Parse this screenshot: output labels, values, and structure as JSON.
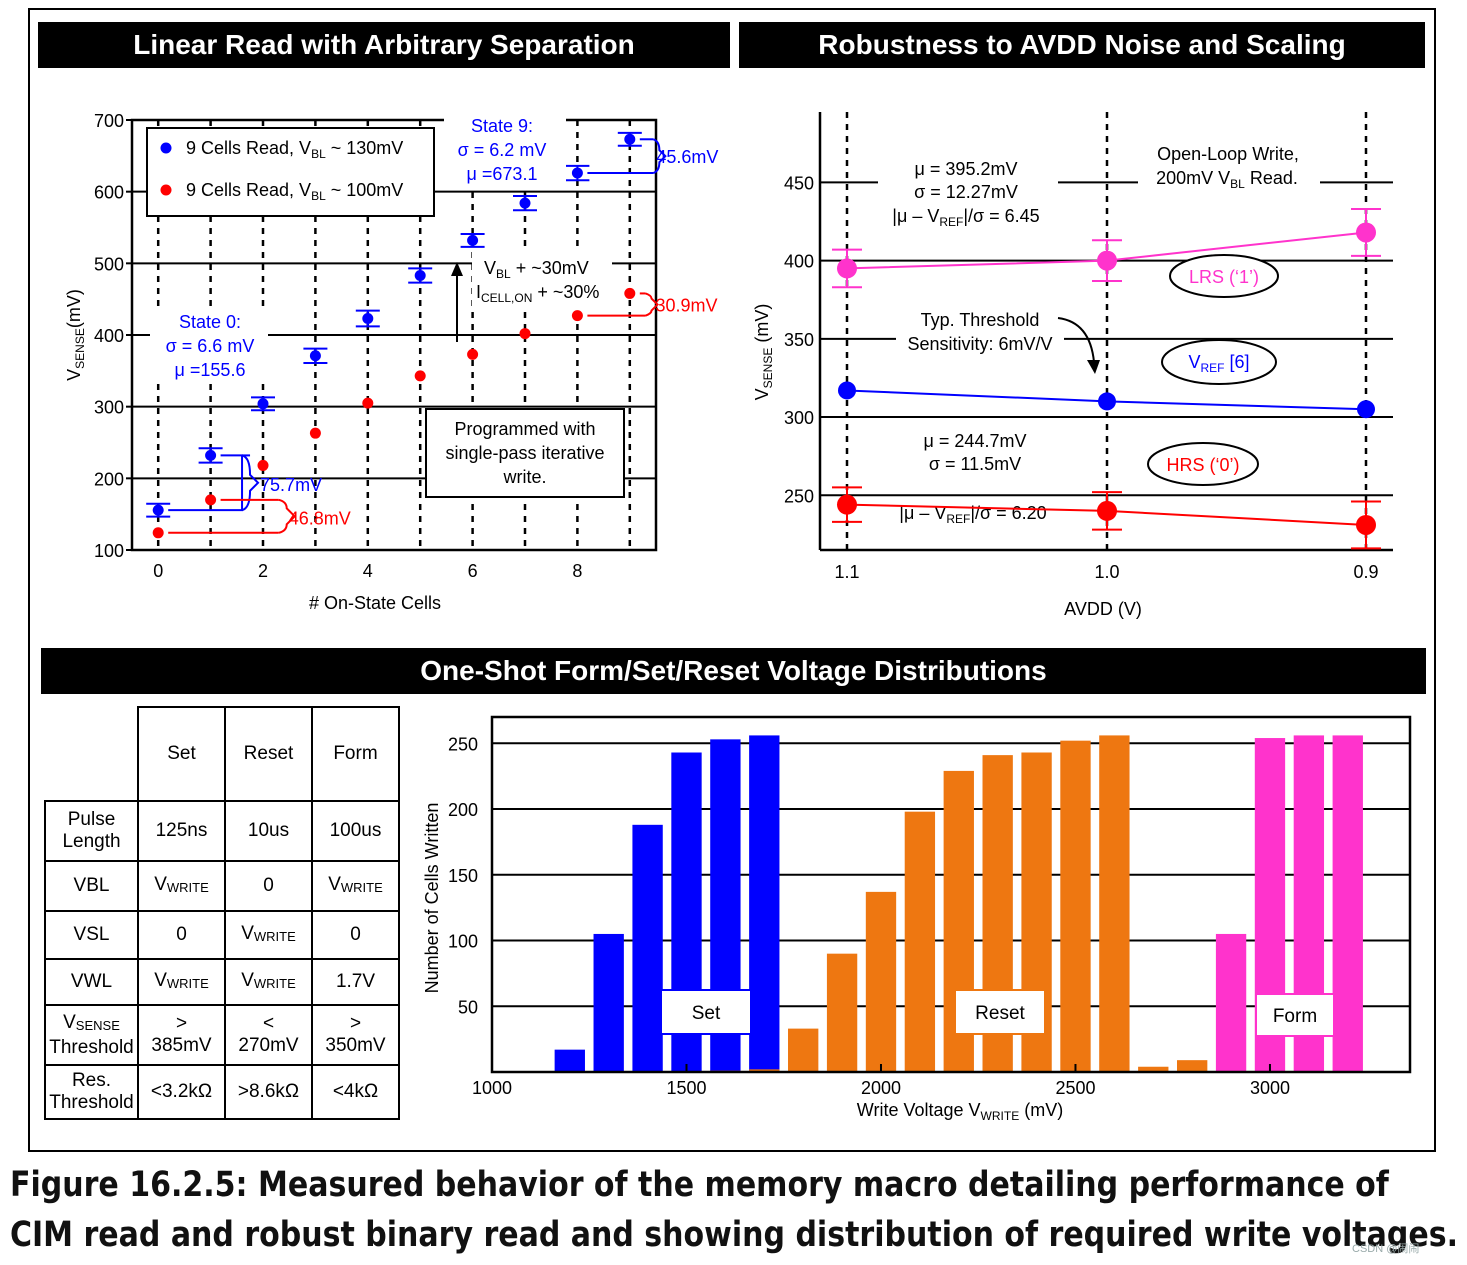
{
  "panels": {
    "linear_title": "Linear Read with Arbitrary Separation",
    "robust_title": "Robustness to AVDD Noise and Scaling",
    "oneshot_title": "One-Shot Form/Set/Reset Voltage Distributions"
  },
  "chart_data": [
    {
      "id": "linear-read",
      "type": "scatter",
      "title": "Linear Read with Arbitrary Separation",
      "xlabel": "# On-State Cells",
      "ylabel_main": "V",
      "ylabel_sub": "SENSE",
      "ylabel_tail": "(mV)",
      "xlim": [
        -0.5,
        9.5
      ],
      "ylim": [
        100,
        700
      ],
      "xticks": [
        0,
        2,
        4,
        6,
        8
      ],
      "yticks": [
        100,
        200,
        300,
        400,
        500,
        600,
        700
      ],
      "x_tick_labels": [
        "0",
        "2",
        "4",
        "6",
        "8"
      ],
      "y_tick_labels": [
        "100",
        "200",
        "300",
        "400",
        "500",
        "600",
        "700"
      ],
      "grid": true,
      "legend_position": "top-left",
      "series": [
        {
          "name": "9 Cells Read, V",
          "name_sub": "BL",
          "name_tail": " ~ 130mV",
          "color": "#0000ff",
          "x": [
            0,
            1,
            2,
            3,
            4,
            5,
            6,
            7,
            8,
            9
          ],
          "y": [
            155.6,
            232,
            304,
            371,
            423,
            483,
            532,
            584,
            626,
            673.1
          ],
          "err": [
            9,
            10,
            9,
            10,
            11,
            10,
            9,
            10,
            10,
            9
          ]
        },
        {
          "name": "9 Cells Read, V",
          "name_sub": "BL",
          "name_tail": " ~ 100mV",
          "color": "#ff0000",
          "x": [
            0,
            1,
            2,
            3,
            4,
            5,
            6,
            7,
            8,
            9
          ],
          "y": [
            124,
            170,
            218,
            263,
            305,
            343,
            373,
            402,
            427,
            458
          ]
        }
      ],
      "annotations": {
        "state0": [
          "State 0:",
          "σ =  6.6 mV",
          "μ =155.6"
        ],
        "state9": [
          "State 9:",
          "σ =  6.2 mV",
          "μ =673.1"
        ],
        "blue_gap": "75.7mV",
        "red_gap": "46.8mV",
        "blue_gap_top": "45.6mV",
        "red_gap_top": "30.9mV",
        "shift_vbl": {
          "main": "V",
          "sub": "BL",
          "tail": " + ~30mV"
        },
        "shift_icell": {
          "main": "I",
          "sub": "CELL,ON",
          "tail": " + ~30%"
        },
        "program_note": [
          "Programmed with",
          "single-pass iterative",
          "write."
        ]
      }
    },
    {
      "id": "avdd-robustness",
      "type": "line",
      "title": "Robustness to AVDD Noise and Scaling",
      "xlabel": "AVDD (V)",
      "ylabel_main": "V",
      "ylabel_sub": "SENSE",
      "ylabel_tail": " (mV)",
      "categories": [
        "1.1",
        "1.0",
        "0.9"
      ],
      "ylim": [
        215,
        495
      ],
      "yticks": [
        250,
        300,
        350,
        400,
        450
      ],
      "y_tick_labels": [
        "250",
        "300",
        "350",
        "400",
        "450"
      ],
      "grid": true,
      "series": [
        {
          "name": "LRS (‘1’)",
          "color": "#ff33cc",
          "values": [
            395,
            400,
            418
          ],
          "err": [
            12,
            13,
            15
          ]
        },
        {
          "name_main": "V",
          "name_sub": "REF",
          "name_tail": " [6]",
          "color": "#0000ff",
          "values": [
            317,
            310,
            305
          ],
          "err": [
            0,
            0,
            0
          ]
        },
        {
          "name": "HRS (‘0’)",
          "color": "#ff0000",
          "values": [
            244,
            240,
            231
          ],
          "err": [
            11,
            12,
            15
          ]
        }
      ],
      "annotations": {
        "lrs_stats": [
          "μ = 395.2mV",
          "σ = 12.27mV"
        ],
        "lrs_ratio": {
          "a": "|μ – V",
          "sub": "REF",
          "b": "|/σ = 6.45"
        },
        "hrs_stats": [
          "μ = 244.7mV",
          "σ = 11.5mV"
        ],
        "hrs_ratio": {
          "a": "|μ – V",
          "sub": "REF",
          "b": "|/σ = 6.20"
        },
        "open_loop": "Open-Loop Write,",
        "read_line": {
          "a": "200mV V",
          "sub": "BL",
          "b": " Read."
        },
        "threshold": [
          "Typ. Threshold",
          "Sensitivity: 6mV/V"
        ]
      }
    },
    {
      "id": "write-voltage-distribution",
      "type": "bar",
      "title": "One-Shot Form/Set/Reset Voltage Distributions",
      "xlabel_main": "Write Voltage V",
      "xlabel_sub": "WRITE",
      "xlabel_tail": " (mV)",
      "ylabel": "Number of Cells Written",
      "xlim": [
        1000,
        3360
      ],
      "ylim": [
        0,
        270
      ],
      "xticks": [
        1000,
        1500,
        2000,
        2500,
        3000
      ],
      "x_tick_labels": [
        "1000",
        "1500",
        "2000",
        "2500",
        "3000"
      ],
      "yticks": [
        50,
        100,
        150,
        200,
        250
      ],
      "y_tick_labels": [
        "50",
        "100",
        "150",
        "200",
        "250"
      ],
      "bar_width_mv": 78,
      "series": [
        {
          "name": "Set",
          "color": "#0000ff",
          "x": [
            1200,
            1300,
            1400,
            1500,
            1600,
            1700
          ],
          "values": [
            17,
            105,
            188,
            243,
            253,
            256
          ]
        },
        {
          "name": "Reset",
          "color": "#ee7711",
          "x": [
            1600,
            1700,
            1800,
            1900,
            2000,
            2100,
            2200,
            2300,
            2400,
            2500,
            2600,
            2700,
            2800
          ],
          "values": [
            1,
            2,
            33,
            90,
            137,
            198,
            229,
            241,
            243,
            252,
            256,
            4,
            9
          ]
        },
        {
          "name": "Form",
          "color": "#ff33cc",
          "x": [
            2900,
            3000,
            3100,
            3200
          ],
          "values": [
            105,
            254,
            256,
            256
          ]
        }
      ]
    }
  ],
  "table": {
    "headers": [
      "Set",
      "Reset",
      "Form"
    ],
    "rows": [
      {
        "label": [
          "Pulse",
          "Length"
        ],
        "cells": [
          {
            "t": "125ns"
          },
          {
            "t": "10us"
          },
          {
            "t": "100us"
          }
        ]
      },
      {
        "label": [
          "VBL"
        ],
        "cells": [
          {
            "t": "V",
            "s": "WRITE"
          },
          {
            "t": "0"
          },
          {
            "t": "V",
            "s": "WRITE"
          }
        ]
      },
      {
        "label": [
          "VSL"
        ],
        "cells": [
          {
            "t": "0"
          },
          {
            "t": "V",
            "s": "WRITE"
          },
          {
            "t": "0"
          }
        ]
      },
      {
        "label": [
          "VWL"
        ],
        "cells": [
          {
            "t": "V",
            "s": "WRITE"
          },
          {
            "t": "V",
            "s": "WRITE"
          },
          {
            "t": "1.7V"
          }
        ]
      },
      {
        "label": [
          "V",
          "SENSE",
          "Threshold"
        ],
        "cells": [
          {
            "t": ">",
            "u": "385mV"
          },
          {
            "t": "<",
            "u": "270mV"
          },
          {
            "t": ">",
            "u": "350mV"
          }
        ]
      },
      {
        "label": [
          "Res.",
          "Threshold"
        ],
        "cells": [
          {
            "t": "<3.2kΩ"
          },
          {
            "t": ">8.6kΩ"
          },
          {
            "t": "<4kΩ"
          }
        ]
      }
    ]
  },
  "caption": [
    "Figure 16.2.5: Measured behavior of the memory macro detailing performance of",
    "CIM read and robust binary read and showing distribution of required write voltages."
  ],
  "watermark": "CSDN @闹闹"
}
